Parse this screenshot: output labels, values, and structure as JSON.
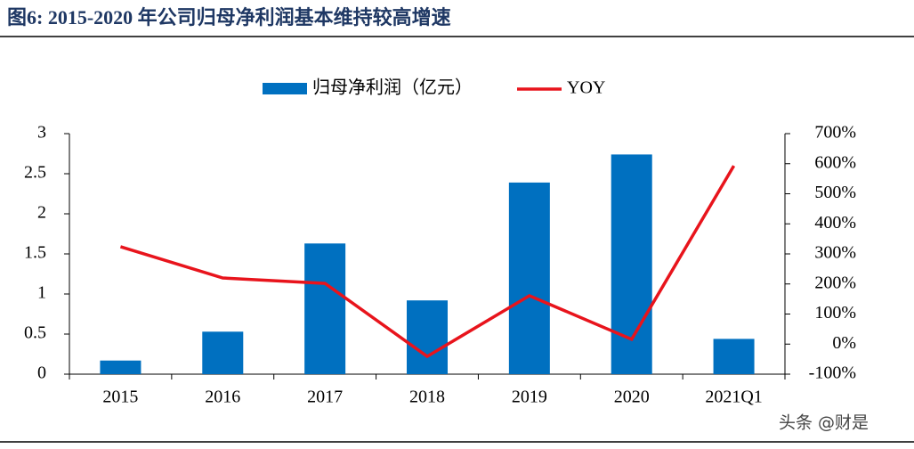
{
  "chart_data": {
    "type": "bar",
    "title": "图6: 2015-2020 年公司归母净利润基本维持较高增速",
    "categories": [
      "2015",
      "2016",
      "2017",
      "2018",
      "2019",
      "2020",
      "2021Q1"
    ],
    "series": [
      {
        "name": "归母净利润（亿元）",
        "type": "bar",
        "color": "#0070c0",
        "values": [
          0.17,
          0.53,
          1.63,
          0.92,
          2.39,
          2.74,
          0.44
        ]
      },
      {
        "name": "YOY",
        "type": "line",
        "axis": "y2",
        "color": "#e8141c",
        "values": [
          324,
          220,
          202,
          -41,
          161,
          16,
          593
        ]
      }
    ],
    "ylim": [
      0,
      3
    ],
    "yticks": [
      0,
      0.5,
      1,
      1.5,
      2,
      2.5,
      3
    ],
    "y2lim": [
      -100,
      700
    ],
    "y2ticks": [
      {
        "value": -100,
        "label": "-100%"
      },
      {
        "value": 0,
        "label": "0%"
      },
      {
        "value": 100,
        "label": "100%"
      },
      {
        "value": 200,
        "label": "200%"
      },
      {
        "value": 300,
        "label": "300%"
      },
      {
        "value": 400,
        "label": "400%"
      },
      {
        "value": 500,
        "label": "500%"
      },
      {
        "value": 600,
        "label": "600%"
      },
      {
        "value": 700,
        "label": "700%"
      }
    ],
    "legend": "top"
  },
  "watermark": "头条 @财是"
}
